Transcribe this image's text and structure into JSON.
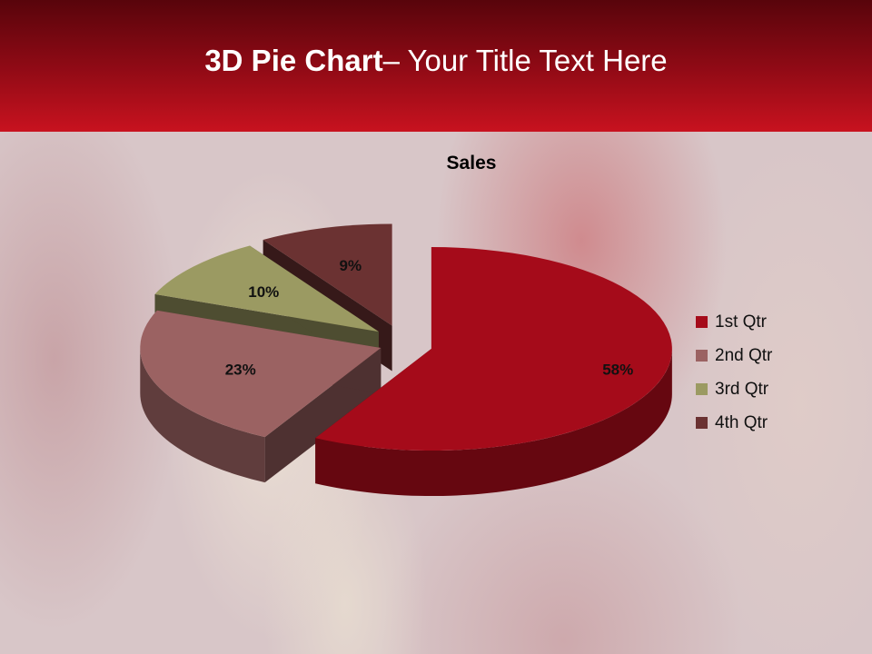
{
  "slide": {
    "title_bold": "3D Pie Chart",
    "title_rest": "– Your Title Text Here"
  },
  "chart_data": {
    "type": "pie",
    "style": "3d-exploded",
    "title": "Sales",
    "categories": [
      "1st Qtr",
      "2nd Qtr",
      "3rd Qtr",
      "4th Qtr"
    ],
    "values": [
      58,
      23,
      10,
      9
    ],
    "data_labels": [
      "58%",
      "23%",
      "10%",
      "9%"
    ],
    "colors": [
      "#a50b1a",
      "#9b6262",
      "#9b9a62",
      "#6b3232"
    ],
    "legend_position": "right"
  }
}
